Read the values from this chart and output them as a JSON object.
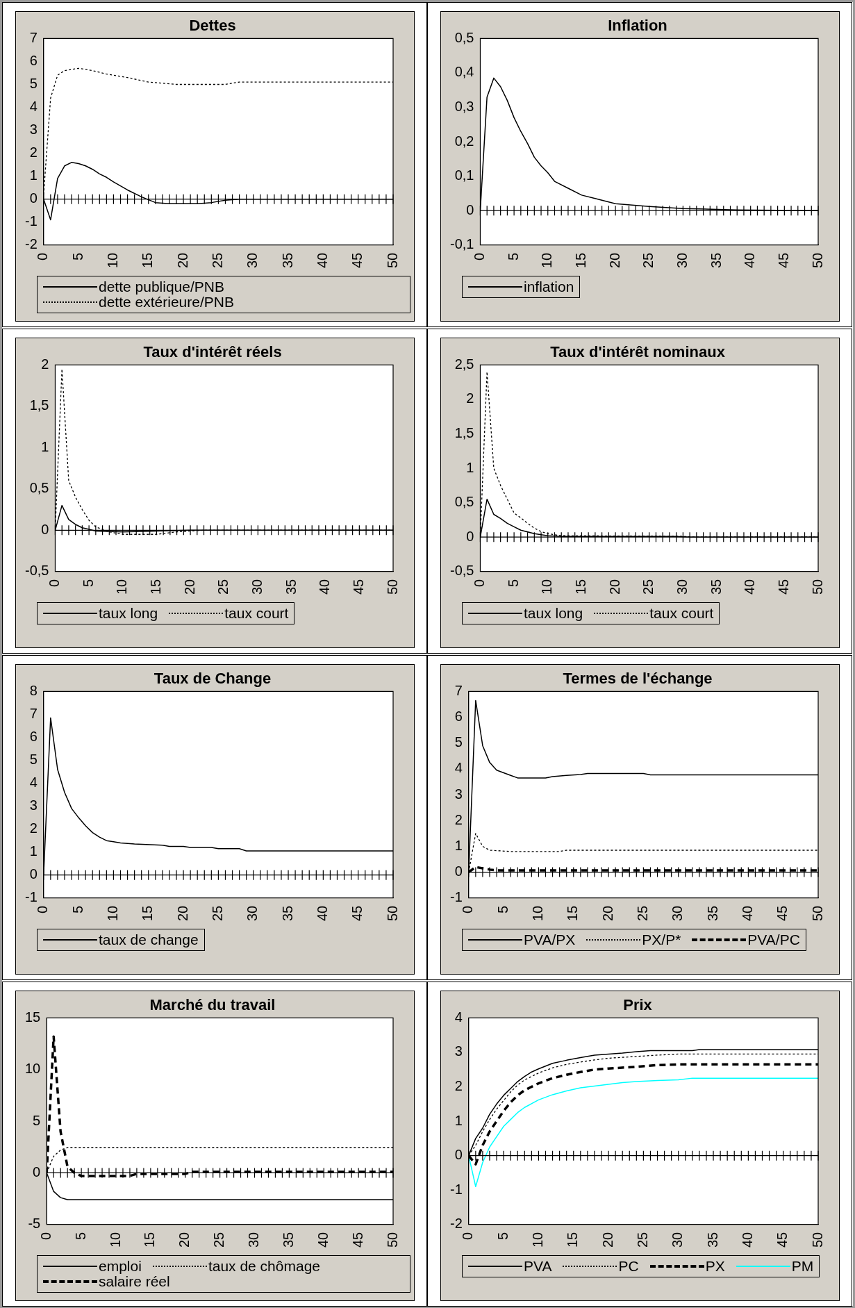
{
  "chart_data": [
    {
      "type": "line",
      "title": "Dettes",
      "xlim": [
        0,
        50
      ],
      "xticks": [
        0,
        5,
        10,
        15,
        20,
        25,
        30,
        35,
        40,
        45,
        50
      ],
      "ylim": [
        -2,
        7
      ],
      "yticks": [
        -2,
        -1,
        0,
        1,
        2,
        3,
        4,
        5,
        6,
        7
      ],
      "legend": "bottom",
      "series": [
        {
          "name": "dette publique/PNB",
          "color": "#000000",
          "line_style": "solid",
          "x": [
            0,
            1,
            2,
            3,
            4,
            5,
            6,
            7,
            8,
            9,
            10,
            12,
            14,
            16,
            18,
            22,
            24,
            26,
            28,
            50
          ],
          "values": [
            0,
            -0.9,
            0.9,
            1.45,
            1.6,
            1.55,
            1.45,
            1.3,
            1.1,
            0.95,
            0.75,
            0.4,
            0.1,
            -0.15,
            -0.2,
            -0.2,
            -0.15,
            -0.05,
            0,
            0
          ]
        },
        {
          "name": "dette extérieure/PNB",
          "color": "#000000",
          "line_style": "dotted",
          "x": [
            0,
            1,
            2,
            3,
            5,
            7,
            9,
            12,
            15,
            19,
            26,
            28,
            50
          ],
          "values": [
            0.2,
            4.4,
            5.4,
            5.6,
            5.7,
            5.6,
            5.45,
            5.3,
            5.1,
            5.0,
            5.0,
            5.1,
            5.1
          ]
        }
      ]
    },
    {
      "type": "line",
      "title": "Inflation",
      "xlim": [
        0,
        50
      ],
      "xticks": [
        0,
        5,
        10,
        15,
        20,
        25,
        30,
        35,
        40,
        45,
        50
      ],
      "ylim": [
        -0.1,
        0.5
      ],
      "yticks": [
        {
          "value": -0.1,
          "label": "-0,1"
        },
        0,
        {
          "value": 0.1,
          "label": "0,1"
        },
        {
          "value": 0.2,
          "label": "0,2"
        },
        {
          "value": 0.3,
          "label": "0,3"
        },
        {
          "value": 0.4,
          "label": "0,4"
        },
        {
          "value": 0.5,
          "label": "0,5"
        }
      ],
      "legend": "bottom",
      "series": [
        {
          "name": "inflation",
          "color": "#000000",
          "line_style": "solid",
          "x": [
            0,
            1,
            2,
            3,
            4,
            5,
            6,
            7,
            8,
            9,
            10,
            11,
            13,
            15,
            17,
            20,
            25,
            30,
            38,
            50
          ],
          "values": [
            0,
            0.33,
            0.385,
            0.36,
            0.32,
            0.27,
            0.23,
            0.195,
            0.155,
            0.13,
            0.11,
            0.085,
            0.065,
            0.045,
            0.035,
            0.02,
            0.012,
            0.006,
            0.002,
            0
          ]
        }
      ]
    },
    {
      "type": "line",
      "title": "Taux d'intérêt réels",
      "xlim": [
        0,
        50
      ],
      "xticks": [
        0,
        5,
        10,
        15,
        20,
        25,
        30,
        35,
        40,
        45,
        50
      ],
      "ylim": [
        -0.5,
        2
      ],
      "yticks": [
        {
          "value": -0.5,
          "label": "-0,5"
        },
        0,
        {
          "value": 0.5,
          "label": "0,5"
        },
        1,
        {
          "value": 1.5,
          "label": "1,5"
        },
        2
      ],
      "legend": "bottom",
      "series": [
        {
          "name": "taux long",
          "color": "#000000",
          "line_style": "solid",
          "x": [
            0,
            1,
            2,
            3,
            4,
            5,
            6,
            10,
            15,
            20,
            50
          ],
          "values": [
            0,
            0.3,
            0.13,
            0.07,
            0.03,
            0.01,
            -0.01,
            -0.02,
            -0.01,
            0,
            0
          ]
        },
        {
          "name": "taux court",
          "color": "#000000",
          "line_style": "dotted",
          "x": [
            0,
            1,
            2,
            3,
            4,
            5,
            6,
            8,
            10,
            15,
            18,
            22,
            50
          ],
          "values": [
            0,
            1.95,
            0.6,
            0.4,
            0.25,
            0.12,
            0.04,
            -0.02,
            -0.05,
            -0.05,
            -0.02,
            0,
            0
          ]
        }
      ]
    },
    {
      "type": "line",
      "title": "Taux d'intérêt nominaux",
      "xlim": [
        0,
        50
      ],
      "xticks": [
        0,
        5,
        10,
        15,
        20,
        25,
        30,
        35,
        40,
        45,
        50
      ],
      "ylim": [
        -0.5,
        2.5
      ],
      "yticks": [
        {
          "value": -0.5,
          "label": "-0,5"
        },
        0,
        {
          "value": 0.5,
          "label": "0,5"
        },
        1,
        {
          "value": 1.5,
          "label": "1,5"
        },
        2,
        {
          "value": 2.5,
          "label": "2,5"
        }
      ],
      "legend": "bottom",
      "series": [
        {
          "name": "taux long",
          "color": "#000000",
          "line_style": "solid",
          "x": [
            0,
            1,
            2,
            3,
            4,
            5,
            6,
            8,
            10,
            12,
            29,
            31,
            50
          ],
          "values": [
            0,
            0.55,
            0.33,
            0.27,
            0.2,
            0.15,
            0.1,
            0.05,
            0.02,
            0.01,
            0.01,
            0,
            0
          ]
        },
        {
          "name": "taux court",
          "color": "#000000",
          "line_style": "dotted",
          "x": [
            0,
            1,
            2,
            3,
            4,
            5,
            6,
            7,
            8,
            9,
            10,
            12,
            30,
            32,
            50
          ],
          "values": [
            0,
            2.4,
            1.0,
            0.75,
            0.55,
            0.35,
            0.28,
            0.2,
            0.13,
            0.08,
            0.05,
            0.02,
            0.01,
            0,
            0
          ]
        }
      ]
    },
    {
      "type": "line",
      "title": "Taux de Change",
      "xlim": [
        0,
        50
      ],
      "xticks": [
        0,
        5,
        10,
        15,
        20,
        25,
        30,
        35,
        40,
        45,
        50
      ],
      "ylim": [
        -1,
        8
      ],
      "yticks": [
        -1,
        0,
        1,
        2,
        3,
        4,
        5,
        6,
        7,
        8
      ],
      "legend": "bottom",
      "series": [
        {
          "name": "taux de change",
          "color": "#000000",
          "line_style": "solid",
          "x": [
            0,
            1,
            2,
            3,
            4,
            5,
            6,
            7,
            8,
            9,
            10,
            11,
            13,
            17,
            18,
            20,
            21,
            24,
            25,
            28,
            29,
            50
          ],
          "values": [
            0,
            6.85,
            4.6,
            3.6,
            2.9,
            2.5,
            2.15,
            1.85,
            1.65,
            1.5,
            1.45,
            1.4,
            1.35,
            1.3,
            1.25,
            1.25,
            1.2,
            1.2,
            1.15,
            1.15,
            1.05,
            1.05
          ]
        }
      ]
    },
    {
      "type": "line",
      "title": "Termes de l'échange",
      "xlim": [
        0,
        50
      ],
      "xticks": [
        0,
        5,
        10,
        15,
        20,
        25,
        30,
        35,
        40,
        45,
        50
      ],
      "ylim": [
        -1,
        7
      ],
      "yticks": [
        -1,
        0,
        1,
        2,
        3,
        4,
        5,
        6,
        7
      ],
      "legend": "bottom",
      "series": [
        {
          "name": "PVA/PX",
          "color": "#000000",
          "line_style": "solid",
          "x": [
            0,
            1,
            2,
            3,
            4,
            6,
            7,
            11,
            12,
            14,
            16,
            17,
            25,
            26,
            50
          ],
          "values": [
            0,
            6.65,
            4.9,
            4.25,
            3.95,
            3.75,
            3.65,
            3.65,
            3.7,
            3.75,
            3.78,
            3.82,
            3.82,
            3.77,
            3.77
          ]
        },
        {
          "name": "PX/P*",
          "color": "#000000",
          "line_style": "dotted",
          "x": [
            0,
            1,
            2,
            3,
            6,
            13,
            14,
            50
          ],
          "values": [
            0,
            1.5,
            1.0,
            0.85,
            0.8,
            0.8,
            0.85,
            0.85
          ]
        },
        {
          "name": "PVA/PC",
          "color": "#000000",
          "line_style": "dashed",
          "x": [
            0,
            1,
            2,
            3,
            4,
            50
          ],
          "values": [
            0,
            0.2,
            0.15,
            0.1,
            0.07,
            0.07
          ]
        }
      ]
    },
    {
      "type": "line",
      "title": "Marché du travail",
      "xlim": [
        0,
        50
      ],
      "xticks": [
        0,
        5,
        10,
        15,
        20,
        25,
        30,
        35,
        40,
        45,
        50
      ],
      "ylim": [
        -5,
        15
      ],
      "yticks": [
        -5,
        0,
        5,
        10,
        15
      ],
      "legend": "bottom",
      "series": [
        {
          "name": "emploi",
          "color": "#000000",
          "line_style": "solid",
          "x": [
            0,
            1,
            2,
            3,
            50
          ],
          "values": [
            0,
            -1.8,
            -2.4,
            -2.6,
            -2.6
          ]
        },
        {
          "name": "taux de chômage",
          "color": "#000000",
          "line_style": "dotted",
          "x": [
            0,
            1,
            2,
            3,
            50
          ],
          "values": [
            0,
            1.6,
            2.2,
            2.45,
            2.45
          ]
        },
        {
          "name": "salaire réel",
          "color": "#000000",
          "line_style": "dashed",
          "x": [
            0,
            1,
            2,
            3,
            4,
            5,
            12,
            13,
            20,
            21,
            50
          ],
          "values": [
            0,
            13.2,
            4,
            0.6,
            0,
            -0.3,
            -0.3,
            -0.1,
            -0.1,
            0.1,
            0.1
          ]
        }
      ]
    },
    {
      "type": "line",
      "title": "Prix",
      "xlim": [
        0,
        50
      ],
      "xticks": [
        0,
        5,
        10,
        15,
        20,
        25,
        30,
        35,
        40,
        45,
        50
      ],
      "ylim": [
        -2,
        4
      ],
      "yticks": [
        -2,
        -1,
        0,
        1,
        2,
        3,
        4
      ],
      "legend": "bottom",
      "series": [
        {
          "name": "PVA",
          "color": "#000000",
          "line_style": "solid",
          "x": [
            0,
            1,
            2,
            3,
            4,
            5,
            6,
            7,
            8,
            9,
            10,
            12,
            14,
            16,
            18,
            20,
            22,
            24,
            26,
            32,
            33,
            50
          ],
          "values": [
            0,
            0.5,
            0.8,
            1.2,
            1.5,
            1.75,
            1.95,
            2.15,
            2.3,
            2.43,
            2.52,
            2.68,
            2.77,
            2.85,
            2.92,
            2.95,
            2.98,
            3.02,
            3.05,
            3.05,
            3.08,
            3.08
          ]
        },
        {
          "name": "PC",
          "color": "#000000",
          "line_style": "dotted",
          "x": [
            0,
            1,
            2,
            3,
            4,
            5,
            6,
            7,
            8,
            10,
            12,
            14,
            16,
            18,
            20,
            24,
            27,
            30,
            50
          ],
          "values": [
            0,
            0.3,
            0.7,
            1.05,
            1.35,
            1.6,
            1.85,
            2.05,
            2.2,
            2.4,
            2.55,
            2.65,
            2.72,
            2.78,
            2.83,
            2.88,
            2.92,
            2.95,
            2.95
          ]
        },
        {
          "name": "PX",
          "color": "#000000",
          "line_style": "dashed",
          "x": [
            0,
            1,
            2,
            3,
            4,
            5,
            6,
            7,
            8,
            10,
            12,
            14,
            16,
            18,
            20,
            24,
            27,
            30,
            50
          ],
          "values": [
            0,
            -0.25,
            0.3,
            0.7,
            1.0,
            1.3,
            1.55,
            1.75,
            1.9,
            2.1,
            2.25,
            2.35,
            2.43,
            2.5,
            2.53,
            2.58,
            2.63,
            2.65,
            2.65
          ]
        },
        {
          "name": "PM",
          "color": "#00ffff",
          "line_style": "solid",
          "x": [
            0,
            1,
            2,
            3,
            4,
            5,
            6,
            7,
            8,
            10,
            12,
            14,
            16,
            18,
            20,
            22,
            24,
            27,
            30,
            32,
            50
          ],
          "values": [
            0,
            -0.9,
            -0.2,
            0.25,
            0.55,
            0.85,
            1.05,
            1.25,
            1.4,
            1.62,
            1.77,
            1.88,
            1.97,
            2.02,
            2.07,
            2.12,
            2.15,
            2.18,
            2.2,
            2.25,
            2.25
          ]
        }
      ]
    }
  ]
}
